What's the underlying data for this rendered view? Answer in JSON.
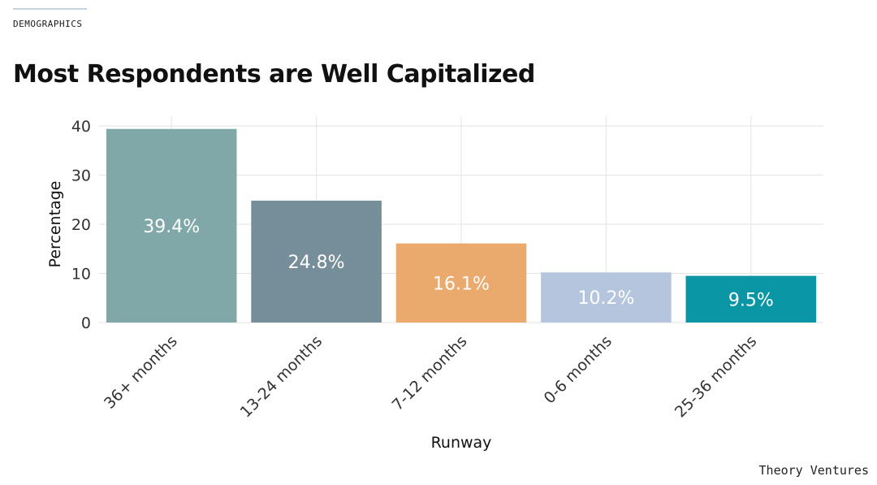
{
  "header": {
    "section_label": "DEMOGRAPHICS",
    "title": "Most Respondents are Well Capitalized"
  },
  "footer": {
    "brand": "Theory Ventures"
  },
  "chart_data": {
    "type": "bar",
    "title": "",
    "xlabel": "Runway",
    "ylabel": "Percentage",
    "categories": [
      "36+ months",
      "13-24 months",
      "7-12 months",
      "0-6 months",
      "25-36 months"
    ],
    "values": [
      39.4,
      24.8,
      16.1,
      10.2,
      9.5
    ],
    "data_labels": [
      "39.4%",
      "24.8%",
      "16.1%",
      "10.2%",
      "9.5%"
    ],
    "colors": [
      "#80a8a9",
      "#768e99",
      "#eaaa6e",
      "#b4c5dd",
      "#0a96a4"
    ],
    "ylim": [
      0,
      42
    ],
    "yticks": [
      0,
      10,
      20,
      30,
      40
    ],
    "grid": true,
    "legend": "none"
  }
}
